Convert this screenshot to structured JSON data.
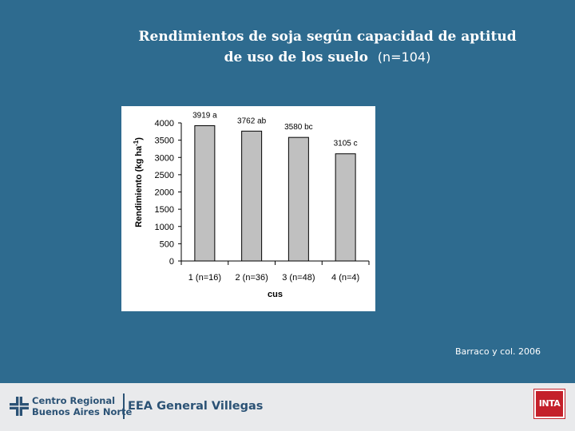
{
  "slide": {
    "title_line1": "Rendimientos de soja según capacidad de aptitud",
    "title_line2": "de uso de los suelo",
    "title_suffix": "(n=104)",
    "citation": "Barraco y col. 2006"
  },
  "footer": {
    "org_line1": "Centro Regional",
    "org_line2": "Buenos Aires Norte",
    "station": "EEA General Villegas",
    "inta_logo_text": "INTA"
  },
  "colors": {
    "background": "#2e6b8f",
    "bar_fill": "#c0c0c0",
    "logo_blue": "#2b5275",
    "inta_red": "#c4202a"
  },
  "chart_data": {
    "type": "bar",
    "categories": [
      "1 (n=16)",
      "2 (n=36)",
      "3 (n=48)",
      "4 (n=4)"
    ],
    "values": [
      3919,
      3762,
      3580,
      3105
    ],
    "data_labels": [
      "3919 a",
      "3762 ab",
      "3580 bc",
      "3105 c"
    ],
    "xlabel": "cus",
    "ylabel": "Rendimiento (kg ha",
    "ylabel_sup": "-1",
    "ylabel_close": ")",
    "ylim": [
      0,
      4000
    ],
    "yticks": [
      0,
      500,
      1000,
      1500,
      2000,
      2500,
      3000,
      3500,
      4000
    ],
    "grid": false,
    "legend": false
  }
}
